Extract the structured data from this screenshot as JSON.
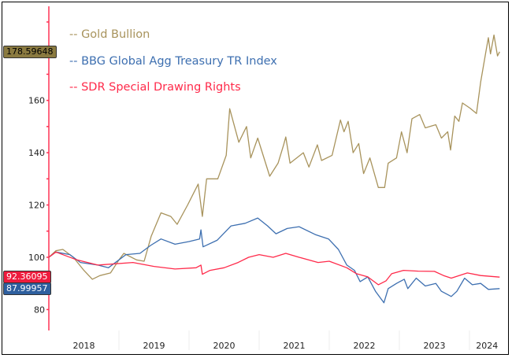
{
  "chart_data": {
    "type": "line",
    "title": "",
    "xlabel": "",
    "ylabel": "",
    "xlim": [
      2018.0,
      2024.5
    ],
    "ylim": [
      72,
      196
    ],
    "x_tick_labels": [
      "2018",
      "2019",
      "2020",
      "2021",
      "2022",
      "2023",
      "2024"
    ],
    "y_tick_labels": [
      "80",
      "100",
      "120",
      "140",
      "160"
    ],
    "grid": false,
    "legend_position": "top-left",
    "series": [
      {
        "name": "-- Gold Bullion",
        "color": "#a8935c",
        "last_value_label": "178.59648",
        "label_bg": "#8a7a40",
        "x": [
          2018.0,
          2018.1,
          2018.2,
          2018.35,
          2018.5,
          2018.62,
          2018.73,
          2018.88,
          2019.0,
          2019.07,
          2019.25,
          2019.36,
          2019.46,
          2019.6,
          2019.74,
          2019.83,
          2019.98,
          2020.13,
          2020.19,
          2020.25,
          2020.41,
          2020.53,
          2020.58,
          2020.71,
          2020.82,
          2020.88,
          2020.98,
          2021.15,
          2021.27,
          2021.35,
          2021.38,
          2021.44,
          2021.63,
          2021.71,
          2021.83,
          2021.89,
          2022.04,
          2022.16,
          2022.21,
          2022.27,
          2022.34,
          2022.42,
          2022.49,
          2022.58,
          2022.7,
          2022.79,
          2022.84,
          2022.96,
          2023.03,
          2023.11,
          2023.18,
          2023.29,
          2023.37,
          2023.52,
          2023.6,
          2023.69,
          2023.73,
          2023.79,
          2023.85,
          2023.9,
          2024.01,
          2024.1,
          2024.16,
          2024.24,
          2024.27,
          2024.3,
          2024.35,
          2024.4,
          2024.43
        ],
        "y": [
          100,
          102.5,
          103,
          100,
          95,
          91.6,
          93,
          94,
          99,
          101.5,
          99,
          98.5,
          108,
          117,
          115.6,
          112.6,
          120,
          128,
          115.6,
          130,
          130,
          139,
          156.8,
          144,
          150,
          138,
          145.6,
          131,
          136,
          143,
          146,
          136,
          140,
          134.5,
          143,
          137,
          139,
          152.5,
          148,
          152,
          140,
          143.5,
          132,
          138,
          126.7,
          126.7,
          136,
          138,
          148,
          140,
          153,
          154.6,
          149.5,
          150.7,
          145.6,
          148,
          141,
          154,
          152,
          159,
          157,
          155,
          167,
          179.6,
          184,
          177.8,
          185,
          177,
          178.6
        ]
      },
      {
        "name": "-- BBG Global Agg Treasury TR Index",
        "color": "#3d6fb0",
        "last_value_label": "87.99957",
        "label_bg": "#2e5f9e",
        "x": [
          2018.0,
          2018.1,
          2018.3,
          2018.45,
          2018.7,
          2018.85,
          2019.1,
          2019.3,
          2019.45,
          2019.6,
          2019.8,
          2020.0,
          2020.15,
          2020.17,
          2020.2,
          2020.4,
          2020.6,
          2020.8,
          2020.98,
          2021.12,
          2021.24,
          2021.4,
          2021.57,
          2021.8,
          2021.99,
          2022.13,
          2022.25,
          2022.36,
          2022.44,
          2022.55,
          2022.66,
          2022.78,
          2022.84,
          2022.96,
          2023.07,
          2023.12,
          2023.24,
          2023.37,
          2023.52,
          2023.6,
          2023.74,
          2023.82,
          2023.93,
          2024.04,
          2024.16,
          2024.27,
          2024.43
        ],
        "y": [
          100,
          102,
          101,
          98,
          97,
          96,
          101,
          101.5,
          104.5,
          107,
          105,
          106,
          107,
          110.5,
          104,
          106.5,
          112,
          113,
          115,
          112,
          109,
          111,
          111.7,
          108.7,
          107,
          103,
          97,
          95,
          90.7,
          92.5,
          87,
          82.6,
          88,
          90,
          91.6,
          88,
          92,
          89,
          90,
          87,
          85,
          87,
          92,
          89.5,
          90,
          87.7,
          88
        ]
      },
      {
        "name": "-- SDR Special Drawing Rights",
        "color": "#ff2a4a",
        "last_value_label": "92.36095",
        "label_bg": "#ee1b3d",
        "x": [
          2018.0,
          2018.1,
          2018.4,
          2018.7,
          2019.2,
          2019.5,
          2019.8,
          2020.1,
          2020.17,
          2020.19,
          2020.3,
          2020.5,
          2020.7,
          2020.85,
          2021.0,
          2021.2,
          2021.38,
          2021.57,
          2021.84,
          2022.0,
          2022.25,
          2022.39,
          2022.55,
          2022.7,
          2022.81,
          2022.89,
          2023.06,
          2023.27,
          2023.5,
          2023.63,
          2023.74,
          2023.97,
          2024.16,
          2024.43
        ],
        "y": [
          100,
          102,
          99,
          97,
          98,
          96.5,
          95.5,
          96,
          97,
          93.5,
          95,
          96,
          98,
          100,
          101,
          100,
          101.5,
          100,
          98,
          98.5,
          96,
          93.7,
          92.5,
          89.5,
          91,
          93.7,
          95,
          94.7,
          94.6,
          93,
          92,
          94,
          93,
          92.4
        ]
      }
    ]
  }
}
